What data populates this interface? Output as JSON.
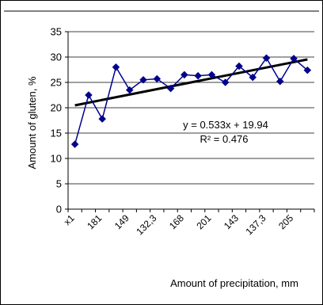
{
  "chart_data": {
    "type": "line",
    "ylabel": "Amount of gluten, %",
    "xlabel": "Amount of precipitation, mm",
    "ylim": [
      0,
      35
    ],
    "yticks": [
      0,
      5,
      10,
      15,
      20,
      25,
      30,
      35
    ],
    "grid": true,
    "categories": [
      "x1",
      "",
      "181",
      "",
      "149",
      "",
      "132,3",
      "",
      "168",
      "",
      "201",
      "",
      "143",
      "",
      "137,3",
      "",
      "205",
      ""
    ],
    "values": [
      12.8,
      22.5,
      17.8,
      28.0,
      23.5,
      25.5,
      25.7,
      23.8,
      26.5,
      26.3,
      26.5,
      25.0,
      28.2,
      26.0,
      29.8,
      25.2,
      29.7,
      27.4
    ],
    "trendline": {
      "type": "linear",
      "slope": 0.533,
      "intercept": 19.94,
      "equation": "y = 0.533x + 19.94",
      "r_squared": "R² = 0.476"
    },
    "colors": {
      "series": "#00008b",
      "trend": "#000000",
      "grid": "#000000"
    }
  }
}
